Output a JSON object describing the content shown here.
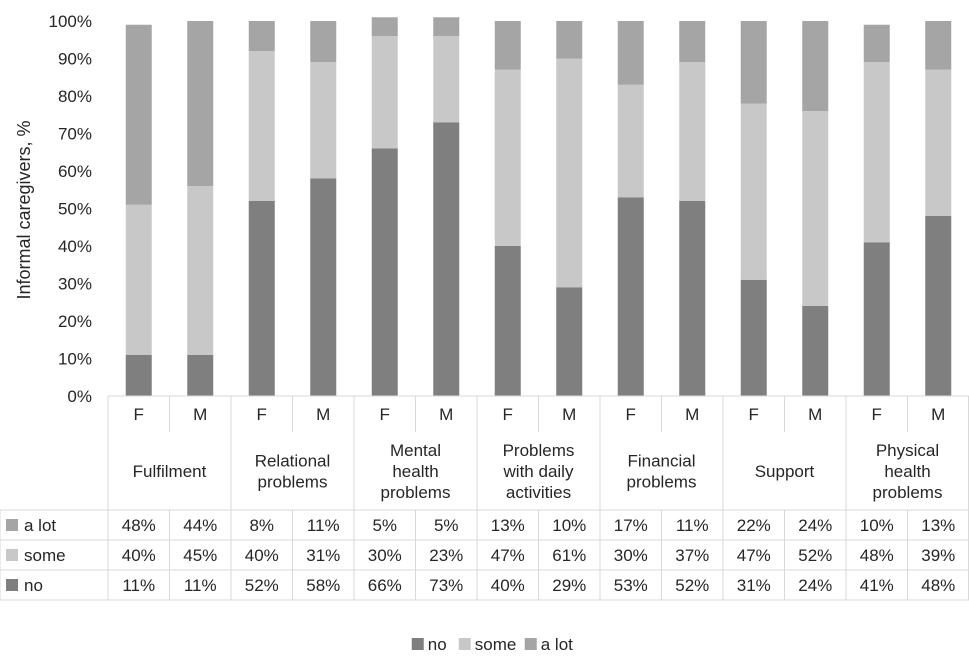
{
  "chart_data": {
    "type": "bar",
    "stacked": true,
    "percent": true,
    "ylabel": "Informal caregivers, %",
    "ylim": [
      0,
      100
    ],
    "yticks": [
      "0%",
      "10%",
      "20%",
      "30%",
      "40%",
      "50%",
      "60%",
      "70%",
      "80%",
      "90%",
      "100%"
    ],
    "grid": false,
    "legend_position": "bottom",
    "groups": [
      {
        "label_lines": [
          "Fulfilment"
        ],
        "sexes": [
          "F",
          "M"
        ]
      },
      {
        "label_lines": [
          "Relational",
          "problems"
        ],
        "sexes": [
          "F",
          "M"
        ]
      },
      {
        "label_lines": [
          "Mental",
          "health",
          "problems"
        ],
        "sexes": [
          "F",
          "M"
        ]
      },
      {
        "label_lines": [
          "Problems",
          "with daily",
          "activities"
        ],
        "sexes": [
          "F",
          "M"
        ]
      },
      {
        "label_lines": [
          "Financial",
          "problems"
        ],
        "sexes": [
          "F",
          "M"
        ]
      },
      {
        "label_lines": [
          "Support"
        ],
        "sexes": [
          "F",
          "M"
        ]
      },
      {
        "label_lines": [
          "Physical",
          "health",
          "problems"
        ],
        "sexes": [
          "F",
          "M"
        ]
      }
    ],
    "series": [
      {
        "name": "no",
        "color": "#7f7f7f",
        "values": [
          11,
          11,
          52,
          58,
          66,
          73,
          40,
          29,
          53,
          52,
          31,
          24,
          41,
          48
        ],
        "labels": [
          "11%",
          "11%",
          "52%",
          "58%",
          "66%",
          "73%",
          "40%",
          "29%",
          "53%",
          "52%",
          "31%",
          "24%",
          "41%",
          "48%"
        ]
      },
      {
        "name": "some",
        "color": "#c8c8c8",
        "values": [
          40,
          45,
          40,
          31,
          30,
          23,
          47,
          61,
          30,
          37,
          47,
          52,
          48,
          39
        ],
        "labels": [
          "40%",
          "45%",
          "40%",
          "31%",
          "30%",
          "23%",
          "47%",
          "61%",
          "30%",
          "37%",
          "47%",
          "52%",
          "48%",
          "39%"
        ]
      },
      {
        "name": "a lot",
        "color": "#a5a5a5",
        "values": [
          48,
          44,
          8,
          11,
          5,
          5,
          13,
          10,
          17,
          11,
          22,
          24,
          10,
          13
        ],
        "labels": [
          "48%",
          "44%",
          "8%",
          "11%",
          "5%",
          "5%",
          "13%",
          "10%",
          "17%",
          "11%",
          "22%",
          "24%",
          "10%",
          "13%"
        ]
      }
    ],
    "table_row_order": [
      "a lot",
      "some",
      "no"
    ],
    "legend_order": [
      "no",
      "some",
      "a lot"
    ]
  }
}
